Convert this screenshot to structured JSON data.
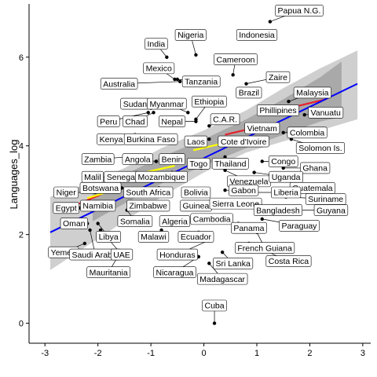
{
  "chart_data": {
    "type": "scatter",
    "title": "",
    "xlabel": "",
    "ylabel": "Languages_log",
    "xlim": [
      -3.3,
      3.15
    ],
    "ylim": [
      -0.45,
      7.2
    ],
    "x_ticks": [
      -3,
      -2,
      -1,
      0,
      1,
      2,
      3
    ],
    "x_tick_labels": [
      "-3",
      "-2",
      "-1",
      "0",
      "1",
      "2",
      "3"
    ],
    "y_ticks": [
      0,
      2,
      4,
      6
    ],
    "y_tick_labels": [
      "0",
      "2",
      "4",
      "6"
    ],
    "grid": false,
    "colors": {
      "band_outer": "#bfbfbf",
      "band_inner": "#999999",
      "fit_line": "#0000ff",
      "segment_red": "#e8212b",
      "segment_yellow": "#ffff00"
    },
    "fit": {
      "x": [
        -2.9,
        2.9
      ],
      "y": [
        2.05,
        5.4
      ]
    },
    "band_outer": {
      "x": [
        -2.9,
        -2.2,
        -1.5,
        -0.8,
        0,
        0.8,
        1.5,
        2.2,
        2.9
      ],
      "upper": [
        2.85,
        3.15,
        3.5,
        3.95,
        4.35,
        4.8,
        5.3,
        5.75,
        6.15
      ],
      "lower": [
        1.2,
        1.75,
        2.3,
        2.85,
        3.4,
        3.85,
        4.1,
        4.35,
        4.6
      ]
    },
    "band_inner": {
      "x": [
        -2.1,
        -1.5,
        -0.8,
        0,
        0.8,
        1.5,
        2.2,
        2.6
      ],
      "upper": [
        2.95,
        3.35,
        3.75,
        4.15,
        4.6,
        5.05,
        5.55,
        5.9
      ],
      "lower": [
        2.3,
        2.7,
        3.15,
        3.55,
        3.95,
        4.25,
        4.55,
        4.65
      ]
    },
    "segments": [
      {
        "color": "red",
        "x": [
          -2.55,
          -1.95
        ],
        "y": [
          2.6,
          2.9
        ]
      },
      {
        "color": "yellow",
        "x": [
          -2.2,
          -1.85
        ],
        "y": [
          2.82,
          2.95
        ]
      },
      {
        "color": "yellow",
        "x": [
          -1.2,
          -0.55
        ],
        "y": [
          3.38,
          3.55
        ]
      },
      {
        "color": "yellow",
        "x": [
          -0.2,
          0.7
        ],
        "y": [
          3.9,
          4.15
        ]
      },
      {
        "color": "red",
        "x": [
          0.4,
          1.0
        ],
        "y": [
          4.25,
          4.42
        ]
      },
      {
        "color": "red",
        "x": [
          1.6,
          2.3
        ],
        "y": [
          4.85,
          5.05
        ]
      }
    ],
    "points": [
      {
        "name": "Papua N.G.",
        "x": 1.25,
        "y": 6.8,
        "lx": 1.8,
        "ly": 7.05
      },
      {
        "name": "Nigeria",
        "x": -0.15,
        "y": 6.05,
        "lx": -0.25,
        "ly": 6.5
      },
      {
        "name": "India",
        "x": -0.7,
        "y": 6.0,
        "lx": -0.9,
        "ly": 6.3
      },
      {
        "name": "Indonesia",
        "x": 1.2,
        "y": 6.55,
        "lx": 1.0,
        "ly": 6.5
      },
      {
        "name": "Cameroon",
        "x": 0.55,
        "y": 5.6,
        "lx": 0.6,
        "ly": 5.95
      },
      {
        "name": "Mexico",
        "x": -0.55,
        "y": 5.5,
        "lx": -0.85,
        "ly": 5.75
      },
      {
        "name": "Zaire",
        "x": 0.8,
        "y": 5.4,
        "lx": 1.4,
        "ly": 5.55
      },
      {
        "name": "Tanzania",
        "x": -0.5,
        "y": 5.5,
        "lx": -0.05,
        "ly": 5.45
      },
      {
        "name": "Australia",
        "x": -0.45,
        "y": 5.45,
        "lx": -1.6,
        "ly": 5.4
      },
      {
        "name": "Brazil",
        "x": 0.8,
        "y": 5.15,
        "lx": 0.85,
        "ly": 5.2
      },
      {
        "name": "Malaysia",
        "x": 1.6,
        "y": 5.0,
        "lx": 2.05,
        "ly": 5.2
      },
      {
        "name": "Sudan",
        "x": -1.0,
        "y": 4.85,
        "lx": -1.3,
        "ly": 4.95
      },
      {
        "name": "Myanmar",
        "x": -0.3,
        "y": 4.75,
        "lx": -0.7,
        "ly": 4.95
      },
      {
        "name": "Ethiopia",
        "x": -0.15,
        "y": 4.6,
        "lx": 0.1,
        "ly": 5.0
      },
      {
        "name": "Phillipines",
        "x": 1.55,
        "y": 4.75,
        "lx": 1.4,
        "ly": 4.8
      },
      {
        "name": "Vanuatu",
        "x": 1.9,
        "y": 4.7,
        "lx": 2.3,
        "ly": 4.75
      },
      {
        "name": "Peru",
        "x": -1.05,
        "y": 4.75,
        "lx": -1.8,
        "ly": 4.55
      },
      {
        "name": "Chad",
        "x": -0.95,
        "y": 4.75,
        "lx": -1.3,
        "ly": 4.55
      },
      {
        "name": "Nepal",
        "x": -0.15,
        "y": 4.55,
        "lx": -0.6,
        "ly": 4.55
      },
      {
        "name": "C.A.R.",
        "x": 0.1,
        "y": 4.45,
        "lx": 0.4,
        "ly": 4.6
      },
      {
        "name": "Vietnam",
        "x": 0.8,
        "y": 4.45,
        "lx": 1.1,
        "ly": 4.4
      },
      {
        "name": "Colombia",
        "x": 1.5,
        "y": 4.3,
        "lx": 1.95,
        "ly": 4.3
      },
      {
        "name": "Kenya",
        "x": -1.3,
        "y": 4.25,
        "lx": -1.75,
        "ly": 4.15
      },
      {
        "name": "Burkina Faso",
        "x": -0.65,
        "y": 4.2,
        "lx": -1.0,
        "ly": 4.15
      },
      {
        "name": "Laos",
        "x": 0.1,
        "y": 4.15,
        "lx": -0.15,
        "ly": 4.1
      },
      {
        "name": "Cote d'Ivoire",
        "x": 0.55,
        "y": 4.05,
        "lx": 0.75,
        "ly": 4.1
      },
      {
        "name": "Solomon Is.",
        "x": 1.65,
        "y": 4.15,
        "lx": 2.2,
        "ly": 3.95
      },
      {
        "name": "Zambia",
        "x": -1.45,
        "y": 3.75,
        "lx": -2.0,
        "ly": 3.7
      },
      {
        "name": "Angola",
        "x": -0.9,
        "y": 3.65,
        "lx": -1.25,
        "ly": 3.7
      },
      {
        "name": "Benin",
        "x": -0.4,
        "y": 3.65,
        "lx": -0.6,
        "ly": 3.7
      },
      {
        "name": "Thailand",
        "x": 0.4,
        "y": 3.75,
        "lx": 0.5,
        "ly": 3.6
      },
      {
        "name": "Congo",
        "x": 1.1,
        "y": 3.65,
        "lx": 1.5,
        "ly": 3.65
      },
      {
        "name": "Ghana",
        "x": 1.5,
        "y": 3.5,
        "lx": 2.1,
        "ly": 3.5
      },
      {
        "name": "Togo",
        "x": -0.05,
        "y": 3.5,
        "lx": -0.1,
        "ly": 3.6
      },
      {
        "name": "Malil",
        "x": -1.55,
        "y": 3.3,
        "lx": -2.1,
        "ly": 3.3
      },
      {
        "name": "Senegal",
        "x": -1.2,
        "y": 3.3,
        "lx": -1.55,
        "ly": 3.3
      },
      {
        "name": "Mozambique",
        "x": -0.6,
        "y": 3.4,
        "lx": -0.8,
        "ly": 3.3
      },
      {
        "name": "Venezuela",
        "x": 0.4,
        "y": 3.45,
        "lx": 0.85,
        "ly": 3.2
      },
      {
        "name": "Uganda",
        "x": 0.95,
        "y": 3.4,
        "lx": 1.55,
        "ly": 3.3
      },
      {
        "name": "Guatemala",
        "x": 1.3,
        "y": 3.3,
        "lx": 2.05,
        "ly": 3.05
      },
      {
        "name": "Niger",
        "x": -2.05,
        "y": 2.95,
        "lx": -2.6,
        "ly": 2.95
      },
      {
        "name": "Botswana",
        "x": -1.55,
        "y": 3.05,
        "lx": -1.95,
        "ly": 3.05
      },
      {
        "name": "South Africa",
        "x": -0.85,
        "y": 3.05,
        "lx": -1.05,
        "ly": 2.95
      },
      {
        "name": "Bolivia",
        "x": -0.1,
        "y": 3.0,
        "lx": -0.15,
        "ly": 2.95
      },
      {
        "name": "Gabon",
        "x": 0.4,
        "y": 3.0,
        "lx": 0.75,
        "ly": 3.0
      },
      {
        "name": "Liberia",
        "x": 1.0,
        "y": 2.95,
        "lx": 1.55,
        "ly": 2.95
      },
      {
        "name": "Suriname",
        "x": 1.55,
        "y": 2.85,
        "lx": 2.3,
        "ly": 2.8
      },
      {
        "name": "Egypt",
        "x": -2.35,
        "y": 2.6,
        "lx": -2.6,
        "ly": 2.6
      },
      {
        "name": "Namibia",
        "x": -1.85,
        "y": 2.65,
        "lx": -2.0,
        "ly": 2.65
      },
      {
        "name": "Zimbabwe",
        "x": -1.0,
        "y": 2.6,
        "lx": -1.05,
        "ly": 2.65
      },
      {
        "name": "Guinea",
        "x": -0.3,
        "y": 2.6,
        "lx": -0.15,
        "ly": 2.65
      },
      {
        "name": "Sierra Leone",
        "x": 0.3,
        "y": 2.65,
        "lx": 0.6,
        "ly": 2.7
      },
      {
        "name": "Bangladesh",
        "x": 1.1,
        "y": 2.55,
        "lx": 1.4,
        "ly": 2.55
      },
      {
        "name": "Guyana",
        "x": 1.75,
        "y": 2.55,
        "lx": 2.4,
        "ly": 2.55
      },
      {
        "name": "Somalia",
        "x": -1.45,
        "y": 2.55,
        "lx": -1.3,
        "ly": 2.3
      },
      {
        "name": "Algeria",
        "x": -0.6,
        "y": 2.35,
        "lx": -0.55,
        "ly": 2.3
      },
      {
        "name": "Cambodia",
        "x": 0.25,
        "y": 2.35,
        "lx": 0.15,
        "ly": 2.35
      },
      {
        "name": "Oman",
        "x": -2.2,
        "y": 2.25,
        "lx": -2.45,
        "ly": 2.25
      },
      {
        "name": "Paraguay",
        "x": 1.1,
        "y": 2.35,
        "lx": 1.8,
        "ly": 2.2
      },
      {
        "name": "Panama",
        "x": 0.65,
        "y": 2.25,
        "lx": 0.85,
        "ly": 2.15
      },
      {
        "name": "Libya",
        "x": -2.0,
        "y": 2.25,
        "lx": -1.8,
        "ly": 1.95
      },
      {
        "name": "Malawi",
        "x": -0.8,
        "y": 2.1,
        "lx": -0.95,
        "ly": 1.95
      },
      {
        "name": "Ecuador",
        "x": -0.1,
        "y": 2.05,
        "lx": -0.15,
        "ly": 1.95
      },
      {
        "name": "Yemen",
        "x": -2.25,
        "y": 1.8,
        "lx": -2.65,
        "ly": 1.6
      },
      {
        "name": "Saudi Arabia",
        "x": -2.15,
        "y": 2.1,
        "lx": -2.05,
        "ly": 1.55
      },
      {
        "name": "UAE",
        "x": -1.95,
        "y": 2.1,
        "lx": -1.55,
        "ly": 1.55
      },
      {
        "name": "French Guiana",
        "x": 1.0,
        "y": 2.05,
        "lx": 1.15,
        "ly": 1.7
      },
      {
        "name": "Honduras",
        "x": 0.15,
        "y": 1.9,
        "lx": -0.5,
        "ly": 1.55
      },
      {
        "name": "Costa Rica",
        "x": 0.85,
        "y": 1.8,
        "lx": 1.6,
        "ly": 1.4
      },
      {
        "name": "Sri Lanka",
        "x": 0.35,
        "y": 1.6,
        "lx": 0.55,
        "ly": 1.35
      },
      {
        "name": "Mauritania",
        "x": -1.6,
        "y": 1.55,
        "lx": -1.8,
        "ly": 1.15
      },
      {
        "name": "Nicaragua",
        "x": -0.1,
        "y": 1.5,
        "lx": -0.55,
        "ly": 1.15
      },
      {
        "name": "Madagascar",
        "x": 0.1,
        "y": 1.35,
        "lx": 0.35,
        "ly": 1.0
      },
      {
        "name": "Cuba",
        "x": 0.2,
        "y": 0.0,
        "lx": 0.2,
        "ly": 0.4
      }
    ]
  }
}
